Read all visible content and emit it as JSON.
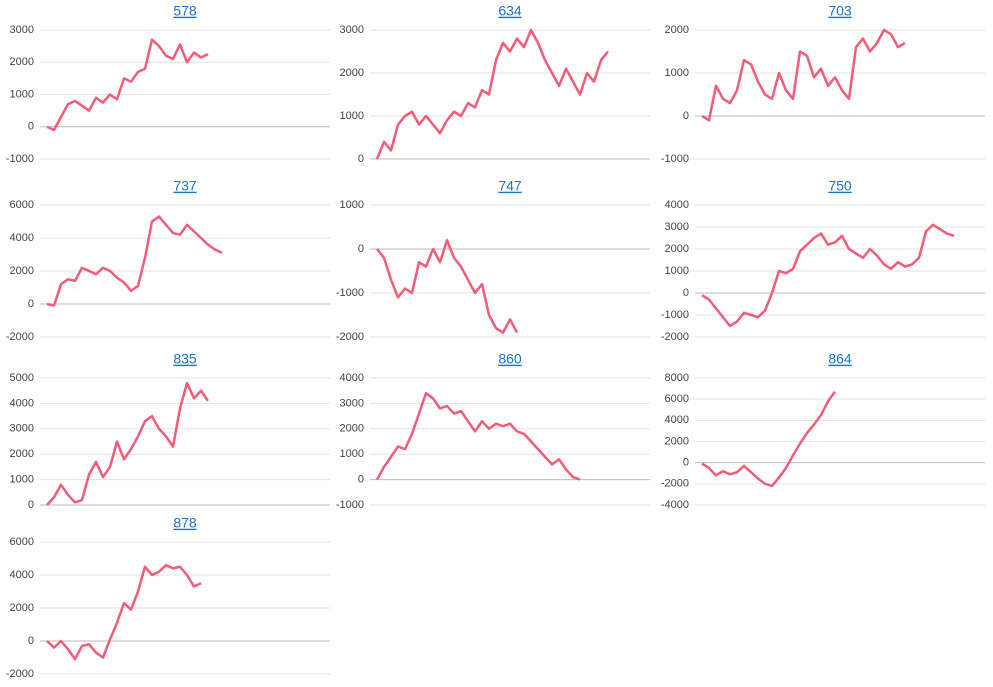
{
  "chart_data": [
    {
      "type": "line",
      "title": "578",
      "color": "#f25c78",
      "ylim": [
        -1000,
        3000
      ],
      "yticks": [
        -1000,
        0,
        1000,
        2000,
        3000
      ],
      "grid": true,
      "values": [
        0,
        -100,
        300,
        700,
        800,
        650,
        500,
        900,
        750,
        1000,
        850,
        1500,
        1400,
        1700,
        1800,
        2700,
        2500,
        2200,
        2100,
        2550,
        2000,
        2300,
        2150,
        2250
      ]
    },
    {
      "type": "line",
      "title": "634",
      "color": "#f25c78",
      "ylim": [
        0,
        3000
      ],
      "yticks": [
        0,
        1000,
        2000,
        3000
      ],
      "grid": true,
      "values": [
        0,
        400,
        200,
        800,
        1000,
        1100,
        800,
        1000,
        800,
        600,
        900,
        1100,
        1000,
        1300,
        1200,
        1600,
        1500,
        2300,
        2700,
        2500,
        2800,
        2600,
        3000,
        2700,
        2300,
        2000,
        1700,
        2100,
        1800,
        1500,
        2000,
        1800,
        2300,
        2500
      ]
    },
    {
      "type": "line",
      "title": "703",
      "color": "#f25c78",
      "ylim": [
        -1000,
        2000
      ],
      "yticks": [
        -1000,
        0,
        1000,
        2000
      ],
      "grid": true,
      "values": [
        0,
        -100,
        700,
        400,
        300,
        600,
        1300,
        1200,
        800,
        500,
        400,
        1000,
        600,
        400,
        1500,
        1400,
        900,
        1100,
        700,
        900,
        600,
        400,
        1600,
        1800,
        1500,
        1700,
        2000,
        1900,
        1600,
        1700
      ]
    },
    {
      "type": "line",
      "title": "737",
      "color": "#f25c78",
      "ylim": [
        -2000,
        6000
      ],
      "yticks": [
        -2000,
        0,
        2000,
        4000,
        6000
      ],
      "grid": true,
      "values": [
        0,
        -100,
        1200,
        1500,
        1400,
        2200,
        2000,
        1800,
        2200,
        2000,
        1600,
        1300,
        800,
        1100,
        2800,
        5000,
        5300,
        4800,
        4300,
        4200,
        4800,
        4400,
        4000,
        3600,
        3300,
        3100
      ]
    },
    {
      "type": "line",
      "title": "747",
      "color": "#f25c78",
      "ylim": [
        -2000,
        1000
      ],
      "yticks": [
        -2000,
        -1000,
        0,
        1000
      ],
      "grid": true,
      "values": [
        0,
        -200,
        -700,
        -1100,
        -900,
        -1000,
        -300,
        -400,
        0,
        -300,
        200,
        -200,
        -400,
        -700,
        -1000,
        -800,
        -1500,
        -1800,
        -1900,
        -1600,
        -1900
      ]
    },
    {
      "type": "line",
      "title": "750",
      "color": "#f25c78",
      "ylim": [
        -2000,
        4000
      ],
      "yticks": [
        -2000,
        -1000,
        0,
        1000,
        2000,
        3000,
        4000
      ],
      "grid": true,
      "values": [
        -100,
        -300,
        -700,
        -1100,
        -1500,
        -1300,
        -900,
        -1000,
        -1100,
        -800,
        0,
        1000,
        900,
        1100,
        1900,
        2200,
        2500,
        2700,
        2200,
        2300,
        2600,
        2000,
        1800,
        1600,
        2000,
        1700,
        1300,
        1100,
        1400,
        1200,
        1300,
        1600,
        2800,
        3100,
        2900,
        2700,
        2600
      ]
    },
    {
      "type": "line",
      "title": "835",
      "color": "#f25c78",
      "ylim": [
        0,
        5000
      ],
      "yticks": [
        0,
        1000,
        2000,
        3000,
        4000,
        5000
      ],
      "grid": true,
      "values": [
        0,
        300,
        800,
        400,
        100,
        200,
        1200,
        1700,
        1100,
        1500,
        2500,
        1800,
        2200,
        2700,
        3300,
        3500,
        3000,
        2700,
        2300,
        3800,
        4800,
        4200,
        4500,
        4100
      ]
    },
    {
      "type": "line",
      "title": "860",
      "color": "#f25c78",
      "ylim": [
        -1000,
        4000
      ],
      "yticks": [
        -1000,
        0,
        1000,
        2000,
        3000,
        4000
      ],
      "grid": true,
      "values": [
        0,
        500,
        900,
        1300,
        1200,
        1800,
        2600,
        3400,
        3200,
        2800,
        2900,
        2600,
        2700,
        2300,
        1900,
        2300,
        2000,
        2200,
        2100,
        2200,
        1900,
        1800,
        1500,
        1200,
        900,
        600,
        800,
        400,
        100,
        0
      ]
    },
    {
      "type": "line",
      "title": "864",
      "color": "#f25c78",
      "ylim": [
        -4000,
        8000
      ],
      "yticks": [
        -4000,
        -2000,
        0,
        2000,
        4000,
        6000,
        8000
      ],
      "grid": true,
      "values": [
        -100,
        -500,
        -1200,
        -800,
        -1100,
        -900,
        -300,
        -900,
        -1500,
        -2000,
        -2200,
        -1400,
        -500,
        700,
        1800,
        2800,
        3600,
        4500,
        5800,
        6700
      ]
    },
    {
      "type": "line",
      "title": "878",
      "color": "#f25c78",
      "ylim": [
        -2000,
        6000
      ],
      "yticks": [
        -2000,
        0,
        2000,
        4000,
        6000
      ],
      "grid": true,
      "values": [
        0,
        -400,
        0,
        -500,
        -1100,
        -300,
        -200,
        -700,
        -1000,
        100,
        1100,
        2300,
        1900,
        3000,
        4500,
        4000,
        4200,
        4600,
        4400,
        4500,
        4000,
        3300,
        3500
      ]
    }
  ]
}
